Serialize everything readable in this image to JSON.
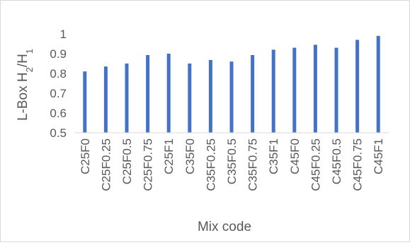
{
  "chart_data": {
    "type": "bar",
    "title": "",
    "xlabel": "Mix code",
    "ylabel": {
      "main": "L-Box H",
      "sub1": "2",
      "slash": "/H",
      "sub2": "1"
    },
    "ylim": [
      0.5,
      1.0
    ],
    "yticks": [
      0.5,
      0.6,
      0.7,
      0.8,
      0.9,
      1
    ],
    "categories": [
      "C25F0",
      "C25F0.25",
      "C25F0.5",
      "C25F0.75",
      "C25F1",
      "C35F0",
      "C35F0.25",
      "C35F0.5",
      "C35F0.75",
      "C35F1",
      "C45F0",
      "C45F0.25",
      "C45F0.5",
      "C45F0.75",
      "C45F1"
    ],
    "values": [
      0.81,
      0.835,
      0.85,
      0.893,
      0.9,
      0.85,
      0.868,
      0.86,
      0.893,
      0.92,
      0.93,
      0.945,
      0.93,
      0.97,
      0.99
    ],
    "bar_color": "#4472c4",
    "grid": false,
    "legend": "none"
  }
}
